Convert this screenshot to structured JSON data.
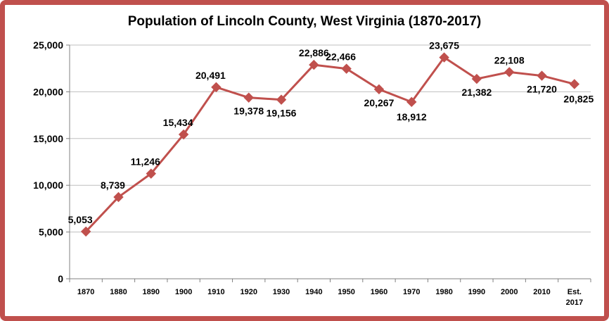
{
  "chart_data": {
    "type": "line",
    "title": "Population of Lincoln County, West Virginia (1870-2017)",
    "xlabel": "",
    "ylabel": "",
    "ylim": [
      0,
      25000
    ],
    "yticks": [
      0,
      5000,
      10000,
      15000,
      20000,
      25000
    ],
    "ytick_labels": [
      "0",
      "5,000",
      "10,000",
      "15,000",
      "20,000",
      "25,000"
    ],
    "grid": true,
    "categories": [
      "1870",
      "1880",
      "1890",
      "1900",
      "1910",
      "1920",
      "1930",
      "1940",
      "1950",
      "1960",
      "1970",
      "1980",
      "1990",
      "2000",
      "2010",
      "Est. 2017"
    ],
    "series": [
      {
        "name": "Population",
        "color": "#c0504d",
        "values": [
          5053,
          8739,
          11246,
          15434,
          20491,
          19378,
          19156,
          22886,
          22466,
          20267,
          18912,
          23675,
          21382,
          22108,
          21720,
          20825
        ],
        "labels": [
          "5,053",
          "8,739",
          "11,246",
          "15,434",
          "20,491",
          "19,378",
          "19,156",
          "22,886",
          "22,466",
          "20,267",
          "18,912",
          "23,675",
          "21,382",
          "22,108",
          "21,720",
          "20,825"
        ]
      }
    ]
  }
}
